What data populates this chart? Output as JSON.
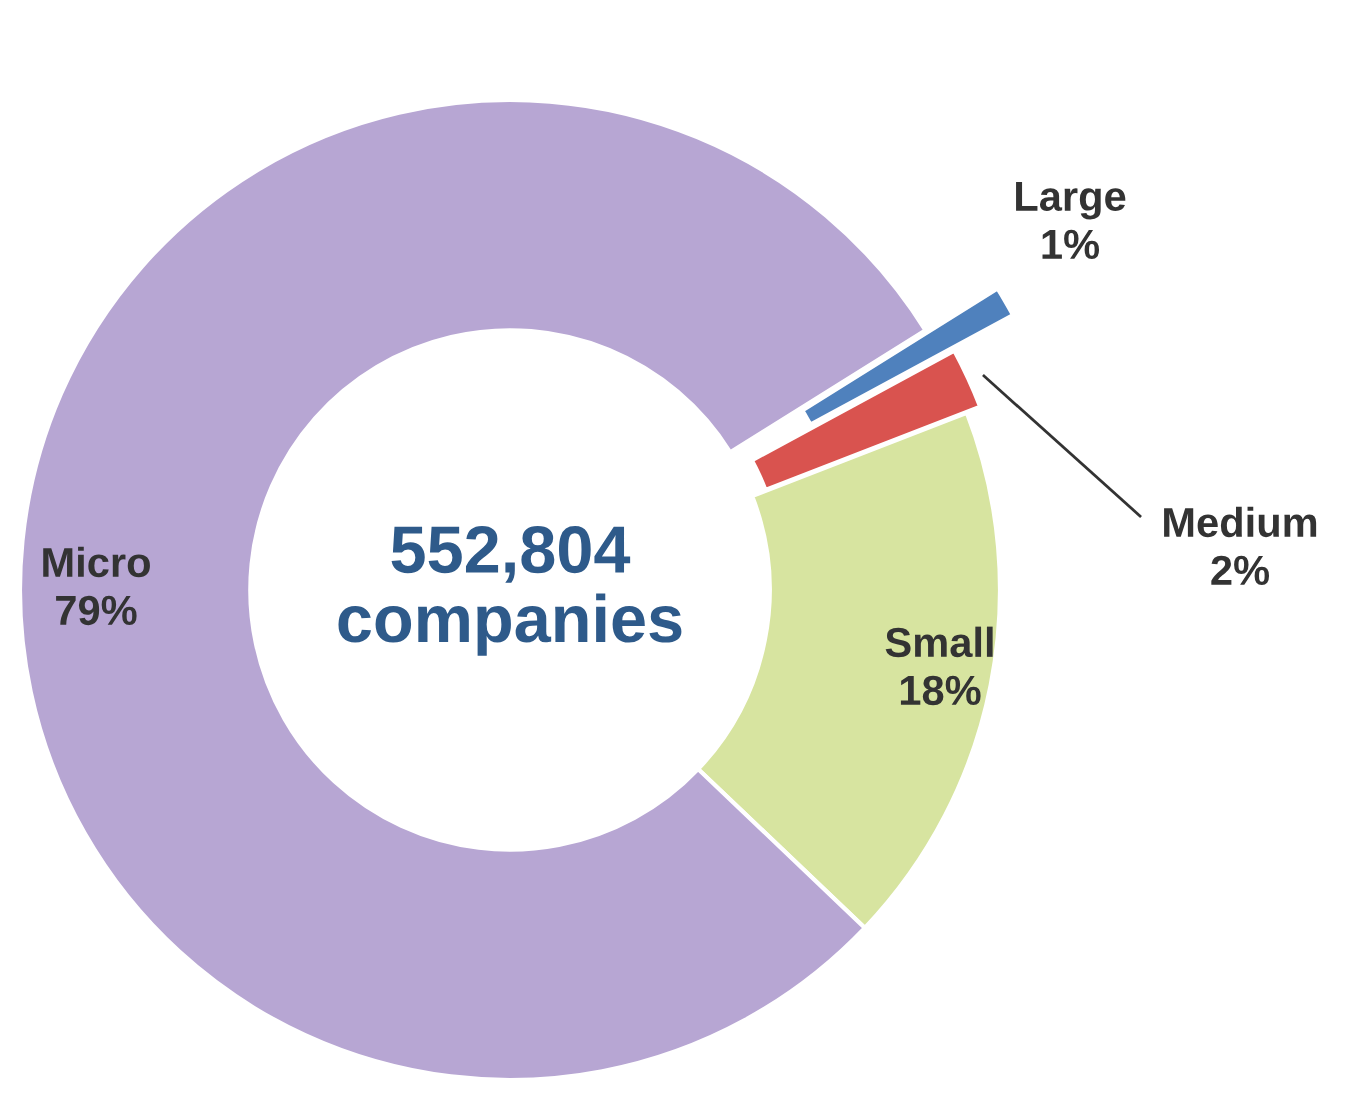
{
  "chart_data": {
    "type": "donut",
    "categories": [
      "Large",
      "Medium",
      "Small",
      "Micro"
    ],
    "values": [
      1,
      2,
      18,
      79
    ],
    "value_labels": [
      "1%",
      "2%",
      "18%",
      "79%"
    ],
    "colors": [
      "#4f81bd",
      "#d9534f",
      "#d7e4a0",
      "#b7a6d3"
    ],
    "annotations": [
      "552,804\ncompanies"
    ]
  }
}
